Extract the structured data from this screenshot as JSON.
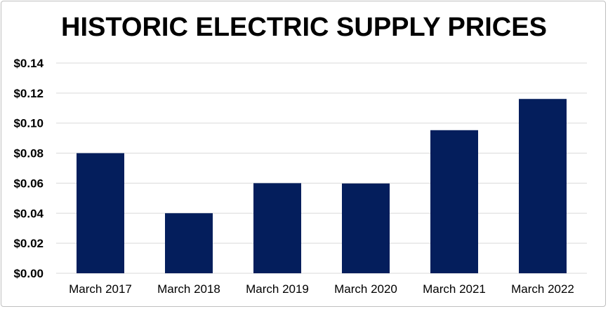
{
  "chart_data": {
    "type": "bar",
    "title": "HISTORIC ELECTRIC SUPPLY PRICES",
    "xlabel": "",
    "ylabel": "",
    "categories": [
      "March 2017",
      "March 2018",
      "March 2019",
      "March 2020",
      "March 2021",
      "March 2022"
    ],
    "values": [
      0.08,
      0.04,
      0.06,
      0.0598,
      0.0953,
      0.1161
    ],
    "ylim": [
      0,
      0.14
    ],
    "y_ticks": [
      "$0.00",
      "$0.02",
      "$0.04",
      "$0.06",
      "$0.08",
      "$0.10",
      "$0.12",
      "$0.14"
    ],
    "grid": true,
    "legend": "none",
    "bar_color": "#041e5c",
    "grid_color": "#d9d9d9"
  }
}
